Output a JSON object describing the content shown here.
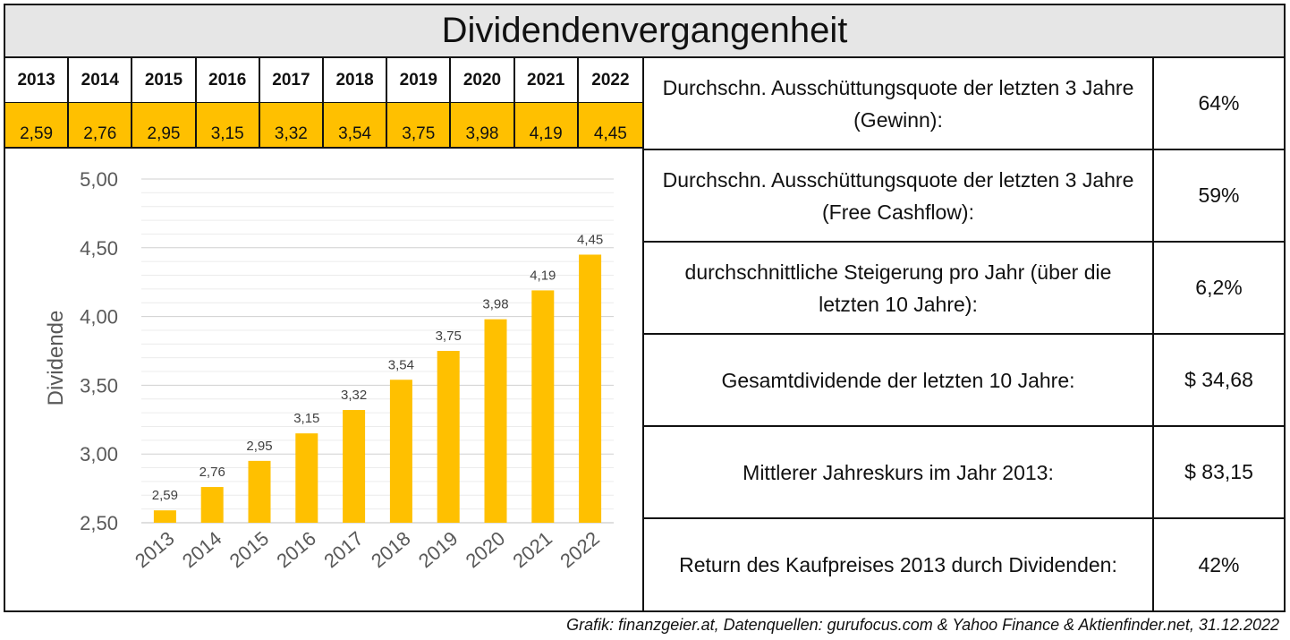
{
  "title": "Dividendenvergangenheit",
  "table": {
    "years": [
      "2013",
      "2014",
      "2015",
      "2016",
      "2017",
      "2018",
      "2019",
      "2020",
      "2021",
      "2022"
    ],
    "values": [
      "2,59",
      "2,76",
      "2,95",
      "3,15",
      "3,32",
      "3,54",
      "3,75",
      "3,98",
      "4,19",
      "4,45"
    ]
  },
  "stats": [
    {
      "label": "Durchschn. Ausschüttungsquote der letzten 3 Jahre (Gewinn):",
      "value": "64%"
    },
    {
      "label": "Durchschn. Ausschüttungsquote der letzten 3 Jahre (Free Cashflow):",
      "value": "59%"
    },
    {
      "label": "durchschnittliche Steigerung pro Jahr (über die letzten 10 Jahre):",
      "value": "6,2%"
    },
    {
      "label": "Gesamtdividende der letzten 10 Jahre:",
      "value": "$ 34,68"
    },
    {
      "label": "Mittlerer Jahreskurs im Jahr 2013:",
      "value": "$ 83,15"
    },
    {
      "label": "Return des Kaufpreises 2013 durch Dividenden:",
      "value": "42%"
    }
  ],
  "chart_data": {
    "type": "bar",
    "categories": [
      "2013",
      "2014",
      "2015",
      "2016",
      "2017",
      "2018",
      "2019",
      "2020",
      "2021",
      "2022"
    ],
    "values": [
      2.59,
      2.76,
      2.95,
      3.15,
      3.32,
      3.54,
      3.75,
      3.98,
      4.19,
      4.45
    ],
    "data_labels": [
      "2,59",
      "2,76",
      "2,95",
      "3,15",
      "3,32",
      "3,54",
      "3,75",
      "3,98",
      "4,19",
      "4,45"
    ],
    "ylabel": "Dividende",
    "ylim": [
      2.5,
      5.0
    ],
    "yticks": [
      "2,50",
      "3,00",
      "3,50",
      "4,00",
      "4,50",
      "5,00"
    ],
    "grid": true,
    "bar_color": "#ffc000"
  },
  "credit": "Grafik: finanzgeier.at, Datenquellen: gurufocus.com & Yahoo Finance & Aktienfinder.net, 31.12.2022"
}
